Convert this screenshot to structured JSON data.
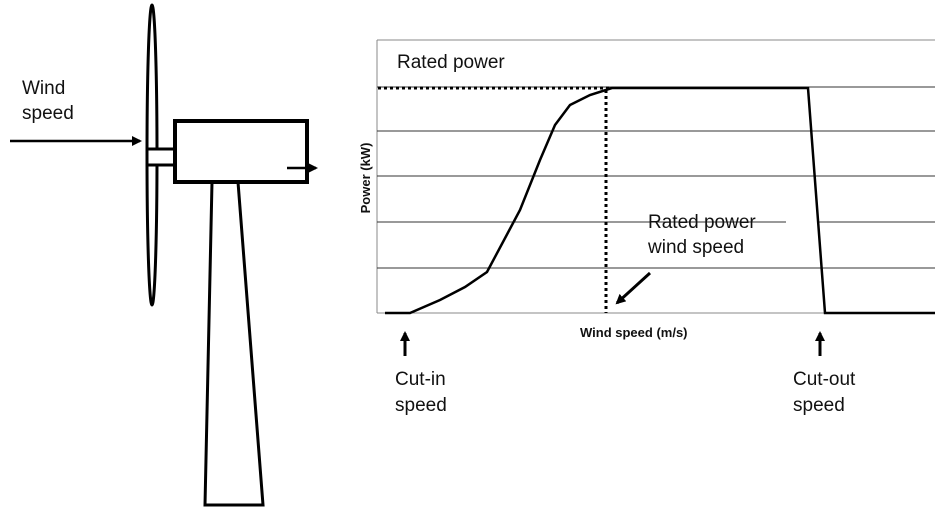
{
  "turbine_label": {
    "lines": [
      "Wind",
      "speed"
    ]
  },
  "curve": {
    "rated_power": "Rated power",
    "y_axis_label": "Power (kW)",
    "x_axis_label": "Wind speed (m/s)",
    "rated_speed_label": {
      "lines": [
        "Rated power",
        "wind speed"
      ]
    },
    "cut_in_label": {
      "lines": [
        "Cut-in",
        "speed"
      ]
    },
    "cut_out_label": {
      "lines": [
        "Cut-out",
        "speed"
      ]
    }
  }
}
